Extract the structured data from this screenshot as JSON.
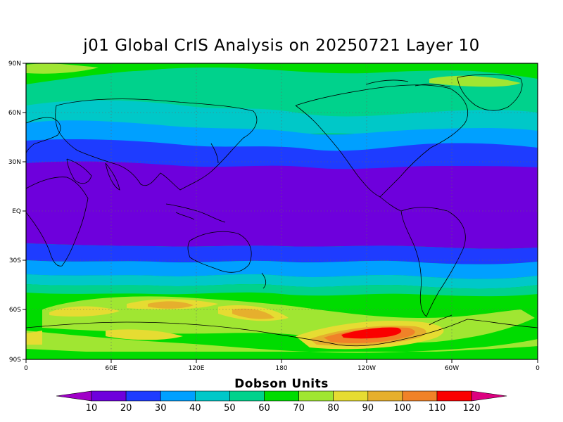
{
  "title": "j01 Global CrIS Analysis on 20250721 Layer 10",
  "axes": {
    "lat_labels": [
      "90N",
      "60N",
      "30N",
      "EQ",
      "30S",
      "60S",
      "90S"
    ],
    "lon_labels": [
      "0",
      "60E",
      "120E",
      "180",
      "120W",
      "60W",
      "0"
    ]
  },
  "colorbar": {
    "title": "Dobson Units",
    "labels": [
      "10",
      "20",
      "30",
      "40",
      "50",
      "60",
      "70",
      "80",
      "90",
      "100",
      "110",
      "120"
    ],
    "colors": [
      "#a000c8",
      "#6e00dc",
      "#1e3cff",
      "#00a0ff",
      "#00c8c8",
      "#00d28c",
      "#00dc00",
      "#a0e632",
      "#e6dc32",
      "#e6af2d",
      "#f08228",
      "#fa0000",
      "#dc0080"
    ]
  },
  "map_colors": {
    "purple": "#6e00dc",
    "blue": "#1e3cff",
    "lightblue": "#00a0ff",
    "cyan": "#00c8c8",
    "teal": "#00d28c",
    "green": "#00dc00",
    "yellowgreen": "#a0e632",
    "yellow": "#e6dc32",
    "orange": "#e6af2d",
    "darkorange": "#f08228",
    "red": "#fa0000"
  }
}
